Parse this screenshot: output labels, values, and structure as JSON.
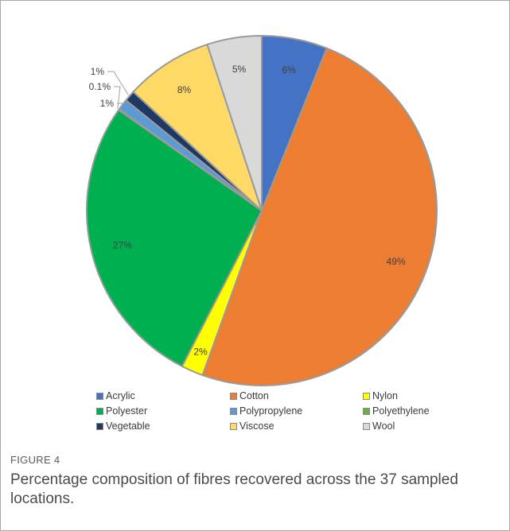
{
  "figure": {
    "label": "FIGURE 4",
    "caption": "Percentage composition of fibres recovered across the 37 sampled locations."
  },
  "chart_data": {
    "type": "pie",
    "title": "",
    "start": "top, clockwise",
    "slices": [
      {
        "name": "Acrylic",
        "value": 6,
        "label": "6%",
        "color": "#4472c4"
      },
      {
        "name": "Cotton",
        "value": 49,
        "label": "49%",
        "color": "#ed7d31"
      },
      {
        "name": "Nylon",
        "value": 2,
        "label": "2%",
        "color": "#ffff00"
      },
      {
        "name": "Polyester",
        "value": 27,
        "label": "27%",
        "color": "#00b050"
      },
      {
        "name": "Polyethylene",
        "value": 0.1,
        "label": "0.1%",
        "color": "#70ad47"
      },
      {
        "name": "Polypropylene",
        "value": 1,
        "label": "1%",
        "color": "#5b9bd5"
      },
      {
        "name": "Vegetable",
        "value": 1,
        "label": "1%",
        "color": "#1f3864"
      },
      {
        "name": "Viscose",
        "value": 8,
        "label": "8%",
        "color": "#ffd966"
      },
      {
        "name": "Wool",
        "value": 5,
        "label": "5%",
        "color": "#d9d9d9"
      }
    ],
    "legend": {
      "placement": "bottom",
      "entries": [
        {
          "name": "Acrylic",
          "color": "#4472c4"
        },
        {
          "name": "Cotton",
          "color": "#ed7d31"
        },
        {
          "name": "Nylon",
          "color": "#ffff00"
        },
        {
          "name": "Polyester",
          "color": "#00b050"
        },
        {
          "name": "Polypropylene",
          "color": "#5b9bd5"
        },
        {
          "name": "Polyethylene",
          "color": "#70ad47"
        },
        {
          "name": "Vegetable",
          "color": "#1f3864"
        },
        {
          "name": "Viscose",
          "color": "#ffd966"
        },
        {
          "name": "Wool",
          "color": "#d9d9d9"
        }
      ]
    }
  }
}
